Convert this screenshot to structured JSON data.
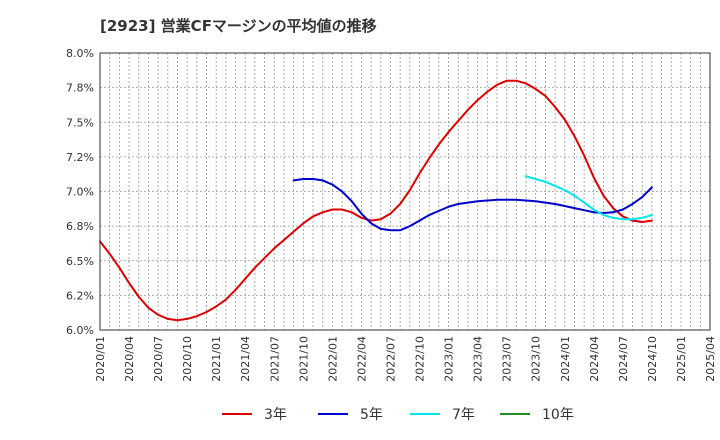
{
  "chart_data": {
    "type": "line",
    "title": "[2923]  営業CFマージンの平均値の推移",
    "xlabel": "",
    "ylabel": "",
    "ylim": [
      6.0,
      8.0
    ],
    "y_ticks": [
      6.0,
      6.25,
      6.5,
      6.75,
      7.0,
      7.25,
      7.5,
      7.75,
      8.0
    ],
    "y_tick_labels": [
      "6.0%",
      "6.2%",
      "6.5%",
      "6.8%",
      "7.0%",
      "7.2%",
      "7.5%",
      "7.8%",
      "8.0%"
    ],
    "x_ticks": [
      "2020/01",
      "2020/04",
      "2020/07",
      "2020/10",
      "2021/01",
      "2021/04",
      "2021/07",
      "2021/10",
      "2022/01",
      "2022/04",
      "2022/07",
      "2022/10",
      "2023/01",
      "2023/04",
      "2023/07",
      "2023/10",
      "2024/01",
      "2024/04",
      "2024/07",
      "2024/10",
      "2025/01",
      "2025/04"
    ],
    "grid": true,
    "legend_position": "bottom",
    "series": [
      {
        "name": "3年",
        "color": "#dd0000",
        "points": [
          [
            "2020/01",
            6.64
          ],
          [
            "2020/02",
            6.55
          ],
          [
            "2020/03",
            6.45
          ],
          [
            "2020/04",
            6.34
          ],
          [
            "2020/05",
            6.24
          ],
          [
            "2020/06",
            6.16
          ],
          [
            "2020/07",
            6.11
          ],
          [
            "2020/08",
            6.08
          ],
          [
            "2020/09",
            6.07
          ],
          [
            "2020/10",
            6.08
          ],
          [
            "2020/11",
            6.1
          ],
          [
            "2020/12",
            6.13
          ],
          [
            "2021/01",
            6.17
          ],
          [
            "2021/02",
            6.22
          ],
          [
            "2021/03",
            6.29
          ],
          [
            "2021/04",
            6.37
          ],
          [
            "2021/05",
            6.45
          ],
          [
            "2021/06",
            6.52
          ],
          [
            "2021/07",
            6.59
          ],
          [
            "2021/08",
            6.65
          ],
          [
            "2021/09",
            6.71
          ],
          [
            "2021/10",
            6.77
          ],
          [
            "2021/11",
            6.82
          ],
          [
            "2021/12",
            6.85
          ],
          [
            "2022/01",
            6.87
          ],
          [
            "2022/02",
            6.87
          ],
          [
            "2022/03",
            6.85
          ],
          [
            "2022/04",
            6.81
          ],
          [
            "2022/05",
            6.79
          ],
          [
            "2022/06",
            6.8
          ],
          [
            "2022/07",
            6.84
          ],
          [
            "2022/08",
            6.91
          ],
          [
            "2022/09",
            7.01
          ],
          [
            "2022/10",
            7.13
          ],
          [
            "2022/11",
            7.24
          ],
          [
            "2022/12",
            7.34
          ],
          [
            "2023/01",
            7.43
          ],
          [
            "2023/02",
            7.51
          ],
          [
            "2023/03",
            7.59
          ],
          [
            "2023/04",
            7.66
          ],
          [
            "2023/05",
            7.72
          ],
          [
            "2023/06",
            7.77
          ],
          [
            "2023/07",
            7.8
          ],
          [
            "2023/08",
            7.8
          ],
          [
            "2023/09",
            7.78
          ],
          [
            "2023/10",
            7.74
          ],
          [
            "2023/11",
            7.69
          ],
          [
            "2023/12",
            7.61
          ],
          [
            "2024/01",
            7.52
          ],
          [
            "2024/02",
            7.4
          ],
          [
            "2024/03",
            7.26
          ],
          [
            "2024/04",
            7.1
          ],
          [
            "2024/05",
            6.97
          ],
          [
            "2024/06",
            6.88
          ],
          [
            "2024/07",
            6.82
          ],
          [
            "2024/08",
            6.79
          ],
          [
            "2024/09",
            6.78
          ],
          [
            "2024/10",
            6.79
          ]
        ]
      },
      {
        "name": "5年",
        "color": "#0000cc",
        "points": [
          [
            "2021/09",
            7.08
          ],
          [
            "2021/10",
            7.09
          ],
          [
            "2021/11",
            7.09
          ],
          [
            "2021/12",
            7.08
          ],
          [
            "2022/01",
            7.05
          ],
          [
            "2022/02",
            7.0
          ],
          [
            "2022/03",
            6.93
          ],
          [
            "2022/04",
            6.84
          ],
          [
            "2022/05",
            6.77
          ],
          [
            "2022/06",
            6.73
          ],
          [
            "2022/07",
            6.72
          ],
          [
            "2022/08",
            6.72
          ],
          [
            "2022/09",
            6.75
          ],
          [
            "2022/10",
            6.79
          ],
          [
            "2022/11",
            6.83
          ],
          [
            "2022/12",
            6.86
          ],
          [
            "2023/01",
            6.89
          ],
          [
            "2023/02",
            6.91
          ],
          [
            "2023/03",
            6.92
          ],
          [
            "2023/04",
            6.93
          ],
          [
            "2023/05",
            6.935
          ],
          [
            "2023/06",
            6.94
          ],
          [
            "2023/07",
            6.94
          ],
          [
            "2023/08",
            6.94
          ],
          [
            "2023/09",
            6.935
          ],
          [
            "2023/10",
            6.93
          ],
          [
            "2023/11",
            6.92
          ],
          [
            "2023/12",
            6.91
          ],
          [
            "2024/01",
            6.895
          ],
          [
            "2024/02",
            6.88
          ],
          [
            "2024/03",
            6.865
          ],
          [
            "2024/04",
            6.85
          ],
          [
            "2024/05",
            6.845
          ],
          [
            "2024/06",
            6.85
          ],
          [
            "2024/07",
            6.87
          ],
          [
            "2024/08",
            6.91
          ],
          [
            "2024/09",
            6.96
          ],
          [
            "2024/10",
            7.03
          ]
        ]
      },
      {
        "name": "7年",
        "color": "#00e5ee",
        "points": [
          [
            "2023/09",
            7.11
          ],
          [
            "2023/10",
            7.09
          ],
          [
            "2023/11",
            7.07
          ],
          [
            "2023/12",
            7.04
          ],
          [
            "2024/01",
            7.01
          ],
          [
            "2024/02",
            6.97
          ],
          [
            "2024/03",
            6.92
          ],
          [
            "2024/04",
            6.87
          ],
          [
            "2024/05",
            6.83
          ],
          [
            "2024/06",
            6.81
          ],
          [
            "2024/07",
            6.8
          ],
          [
            "2024/08",
            6.8
          ],
          [
            "2024/09",
            6.81
          ],
          [
            "2024/10",
            6.83
          ]
        ]
      },
      {
        "name": "10年",
        "color": "#228b22",
        "points": []
      }
    ]
  }
}
